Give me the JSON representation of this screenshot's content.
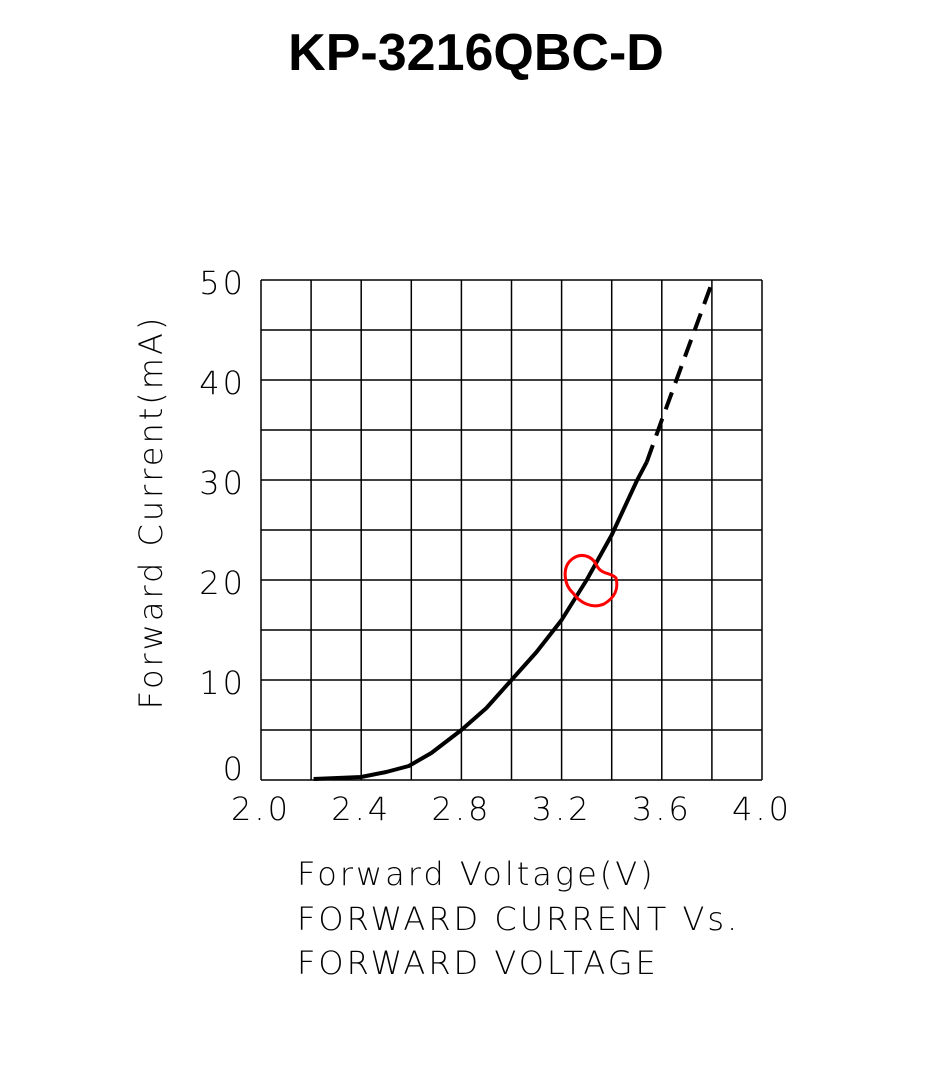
{
  "chart_data": {
    "type": "line",
    "title": "KP-3216QBC-D",
    "x_label": "Forward Voltage(V)",
    "y_label": "Forward Current(mA)",
    "caption": [
      "FORWARD CURRENT Vs.",
      "FORWARD VOLTAGE"
    ],
    "xlim": [
      2,
      4
    ],
    "ylim": [
      0,
      50
    ],
    "xticks": [
      {
        "value": 2,
        "label": "2.0"
      },
      2.4,
      2.8,
      3.2,
      3.6,
      {
        "value": 4,
        "label": "4.0"
      }
    ],
    "yticks": [
      0,
      10,
      20,
      30,
      40,
      50
    ],
    "xgrid": [
      2,
      2.2,
      2.4,
      2.6,
      2.8,
      3,
      3.2,
      3.4,
      3.6,
      3.8,
      4
    ],
    "ygrid": [
      0,
      5,
      10,
      15,
      20,
      25,
      30,
      35,
      40,
      45,
      50
    ],
    "grid": true,
    "series": [
      {
        "color": "#000000",
        "dashed": false,
        "x": [
          2.21,
          2.4,
          2.5,
          2.59,
          2.68,
          2.8,
          2.9,
          3.0,
          3.1,
          3.2,
          3.3,
          3.4,
          3.5,
          3.54
        ],
        "values": [
          0.1,
          0.3,
          0.8,
          1.4,
          2.7,
          5,
          7.2,
          10,
          12.8,
          16,
          20,
          24.5,
          29.9,
          31.8
        ]
      },
      {
        "color": "#000000",
        "dashed": true,
        "x": [
          3.54,
          3.6,
          3.8
        ],
        "values": [
          31.8,
          36,
          49.7
        ]
      }
    ]
  }
}
